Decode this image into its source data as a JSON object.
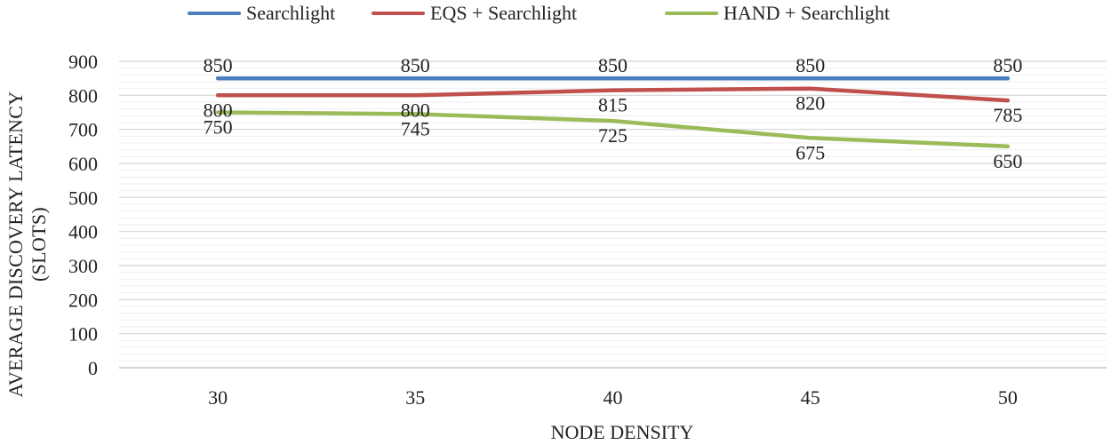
{
  "chart_data": {
    "type": "line",
    "title": "",
    "xlabel": "NODE DENSITY",
    "ylabel": "AVERAGE DISCOVERY LATENCY (SLOTS)",
    "categories": [
      "30",
      "35",
      "40",
      "45",
      "50"
    ],
    "ylim": [
      0,
      900
    ],
    "yticks": [
      0,
      100,
      200,
      300,
      400,
      500,
      600,
      700,
      800,
      900
    ],
    "grid": true,
    "legend_position": "top",
    "series": [
      {
        "name": "Searchlight",
        "color": "#4a7ebf",
        "values": [
          850,
          850,
          850,
          850,
          850
        ]
      },
      {
        "name": "EQS + Searchlight",
        "color": "#c0504d",
        "values": [
          800,
          800,
          815,
          820,
          785
        ]
      },
      {
        "name": "HAND + Searchlight",
        "color": "#9bbb59",
        "values": [
          750,
          745,
          725,
          675,
          650
        ]
      }
    ]
  }
}
